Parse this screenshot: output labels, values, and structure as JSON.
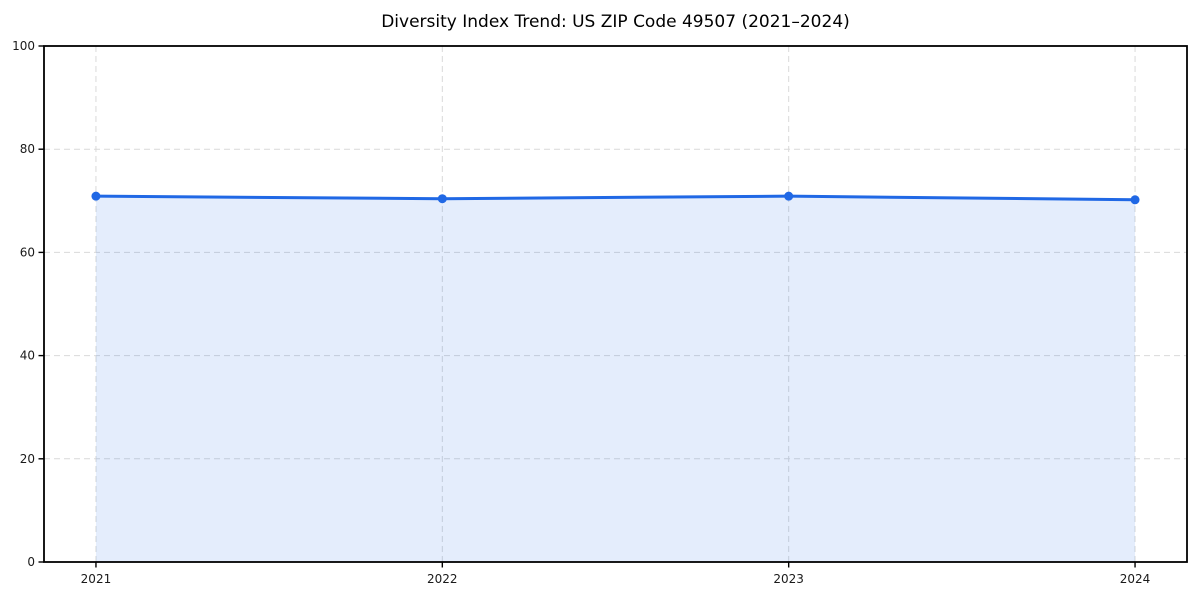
{
  "chart_data": {
    "type": "line",
    "title": "Diversity Index Trend: US ZIP Code 49507 (2021–2024)",
    "x": [
      2021,
      2022,
      2023,
      2024
    ],
    "xtick_labels": [
      "2021",
      "2022",
      "2023",
      "2024"
    ],
    "series": [
      {
        "name": "Diversity Index",
        "values": [
          70.9,
          70.4,
          70.9,
          70.2
        ]
      }
    ],
    "xlabel": "",
    "ylabel": "",
    "ylim": [
      0,
      100
    ],
    "yticks": [
      0,
      20,
      40,
      60,
      80,
      100
    ],
    "ytick_labels": [
      "0",
      "20",
      "40",
      "60",
      "80",
      "100"
    ],
    "x_margin_fraction": 0.05,
    "grid": true,
    "grid_style": "dashed",
    "legend": "none",
    "area_fill": true,
    "marker": "circle",
    "colors": {
      "line": "#2068e5",
      "marker": "#2068e5",
      "fill": "rgba(32,104,229,0.12)",
      "grid": "#d9d9d9",
      "axis": "#000000",
      "text": "#1a1a1a",
      "background": "#ffffff"
    }
  }
}
